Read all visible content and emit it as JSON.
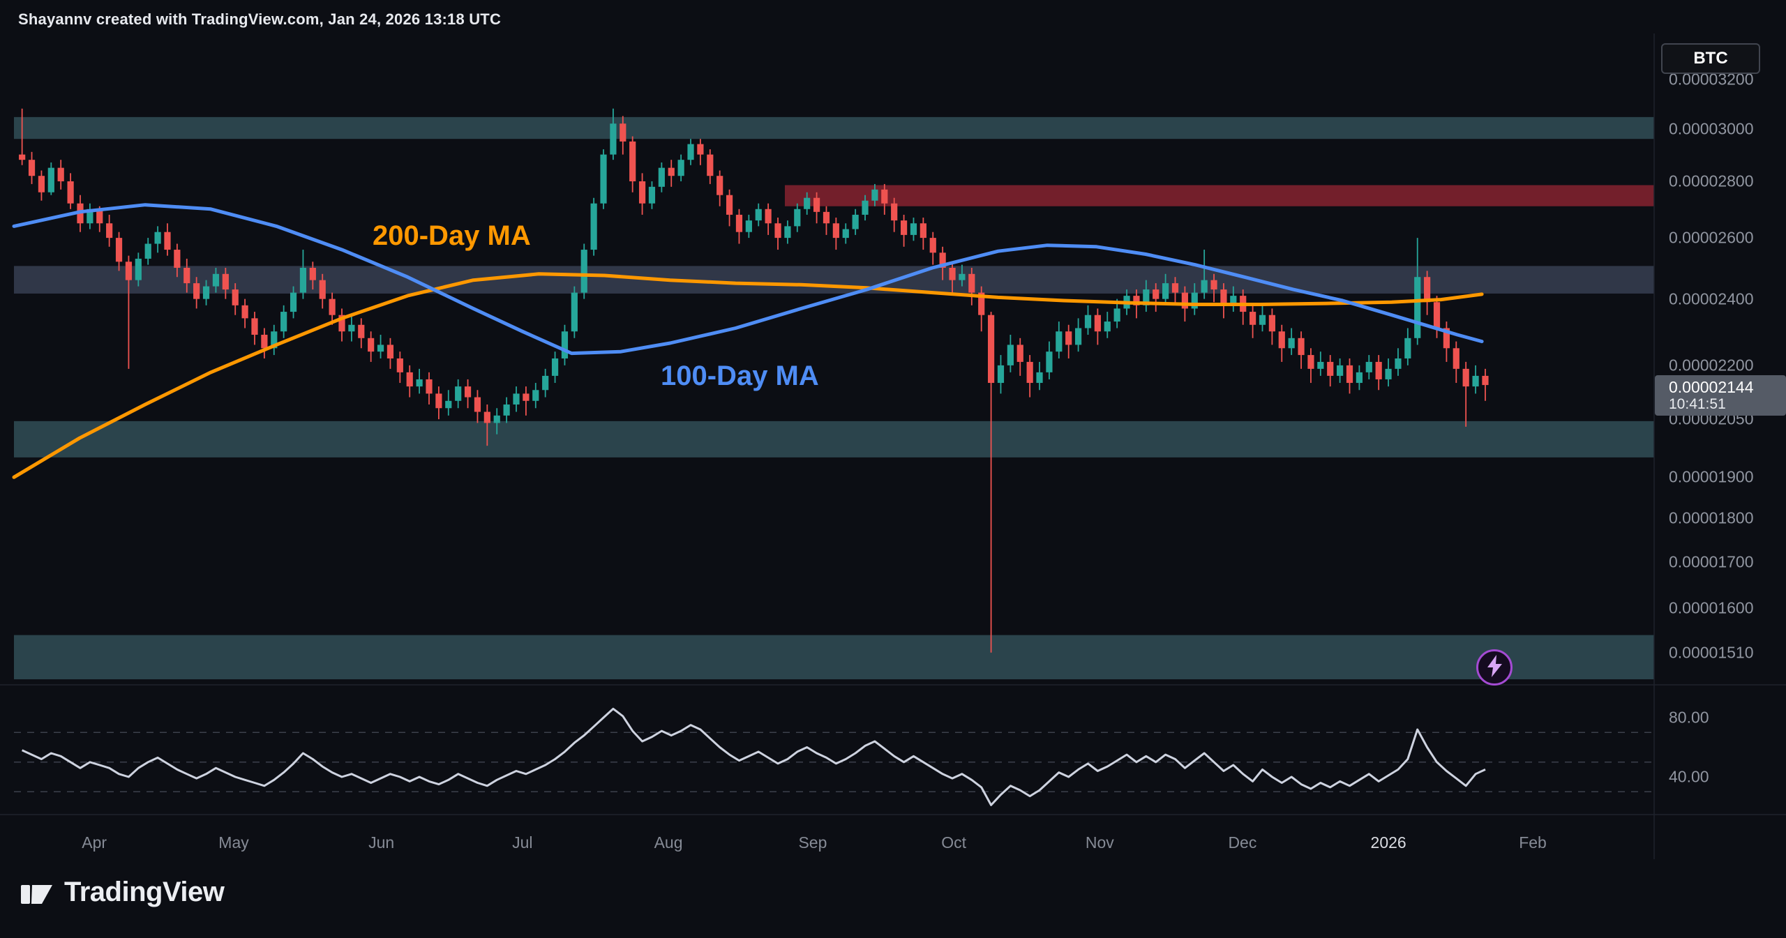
{
  "attribution": "Shayannv created with TradingView.com, Jan 24, 2026 13:18 UTC",
  "symbol_button": "BTC",
  "footer": {
    "brand": "TradingView"
  },
  "overlays": {
    "ma200_label": "200-Day MA",
    "ma100_label": "100-Day MA"
  },
  "price_scale": {
    "labels": [
      {
        "text": "0.00003200",
        "price": 3200
      },
      {
        "text": "0.00003000",
        "price": 3000
      },
      {
        "text": "0.00002800",
        "price": 2800
      },
      {
        "text": "0.00002600",
        "price": 2600
      },
      {
        "text": "0.00002400",
        "price": 2400
      },
      {
        "text": "0.00002200",
        "price": 2200
      },
      {
        "text": "0.00002050",
        "price": 2050
      },
      {
        "text": "0.00001900",
        "price": 1900
      },
      {
        "text": "0.00001800",
        "price": 1800
      },
      {
        "text": "0.00001700",
        "price": 1700
      },
      {
        "text": "0.00001600",
        "price": 1600
      },
      {
        "text": "0.00001510",
        "price": 1510
      }
    ],
    "last": {
      "price_text": "0.00002144",
      "countdown": "10:41:51"
    }
  },
  "time_axis": {
    "labels": [
      {
        "text": "Apr",
        "x_pct": 4.9,
        "bright": false
      },
      {
        "text": "May",
        "x_pct": 13.4,
        "bright": false
      },
      {
        "text": "Jun",
        "x_pct": 22.4,
        "bright": false
      },
      {
        "text": "Jul",
        "x_pct": 31.0,
        "bright": false
      },
      {
        "text": "Aug",
        "x_pct": 39.9,
        "bright": false
      },
      {
        "text": "Sep",
        "x_pct": 48.7,
        "bright": false
      },
      {
        "text": "Oct",
        "x_pct": 57.3,
        "bright": false
      },
      {
        "text": "Nov",
        "x_pct": 66.2,
        "bright": false
      },
      {
        "text": "Dec",
        "x_pct": 74.9,
        "bright": false
      },
      {
        "text": "2026",
        "x_pct": 83.8,
        "bright": true
      },
      {
        "text": "Feb",
        "x_pct": 92.6,
        "bright": false
      }
    ]
  },
  "rsi_axis": {
    "labels": [
      {
        "text": "80.00",
        "value": 80
      },
      {
        "text": "40.00",
        "value": 40
      }
    ]
  },
  "colors": {
    "background": "#0c0e14",
    "up": "#26a69a",
    "down": "#ef5350",
    "ma200": "#ff9800",
    "ma100": "#4f8df5",
    "rsi_line": "#ced3e0",
    "axis_text": "#9196a1",
    "axis_text_bright": "#dadce2",
    "badge_bg": "#555b66",
    "separator": "#1e222c",
    "guide": "#3c404b"
  },
  "chart_data": {
    "type": "candlestick",
    "scale": "logarithmic",
    "quote_currency": "BTC",
    "price_unit": "BTC x 1e-8 (2144 means 0.00002144)",
    "x_range": [
      "late Mar 2025",
      "late Jan 2026"
    ],
    "last_price": 2144,
    "candles": [
      [
        2900,
        3080,
        2860,
        2880
      ],
      [
        2880,
        2910,
        2790,
        2820
      ],
      [
        2820,
        2840,
        2730,
        2760
      ],
      [
        2760,
        2870,
        2750,
        2850
      ],
      [
        2850,
        2880,
        2770,
        2800
      ],
      [
        2800,
        2830,
        2700,
        2720
      ],
      [
        2720,
        2750,
        2620,
        2650
      ],
      [
        2650,
        2720,
        2630,
        2700
      ],
      [
        2700,
        2710,
        2620,
        2650
      ],
      [
        2650,
        2680,
        2570,
        2600
      ],
      [
        2600,
        2620,
        2490,
        2520
      ],
      [
        2520,
        2540,
        2190,
        2460
      ],
      [
        2460,
        2550,
        2440,
        2530
      ],
      [
        2530,
        2600,
        2510,
        2580
      ],
      [
        2580,
        2640,
        2550,
        2620
      ],
      [
        2620,
        2650,
        2540,
        2560
      ],
      [
        2560,
        2580,
        2470,
        2500
      ],
      [
        2500,
        2530,
        2420,
        2450
      ],
      [
        2450,
        2470,
        2370,
        2400
      ],
      [
        2400,
        2460,
        2380,
        2440
      ],
      [
        2440,
        2500,
        2420,
        2480
      ],
      [
        2480,
        2500,
        2400,
        2430
      ],
      [
        2430,
        2450,
        2350,
        2380
      ],
      [
        2380,
        2400,
        2310,
        2340
      ],
      [
        2340,
        2360,
        2260,
        2290
      ],
      [
        2290,
        2310,
        2220,
        2250
      ],
      [
        2250,
        2320,
        2230,
        2300
      ],
      [
        2300,
        2380,
        2280,
        2360
      ],
      [
        2360,
        2440,
        2340,
        2420
      ],
      [
        2420,
        2560,
        2400,
        2500
      ],
      [
        2500,
        2520,
        2430,
        2460
      ],
      [
        2460,
        2480,
        2370,
        2400
      ],
      [
        2400,
        2420,
        2320,
        2350
      ],
      [
        2350,
        2370,
        2270,
        2300
      ],
      [
        2300,
        2350,
        2270,
        2320
      ],
      [
        2320,
        2340,
        2250,
        2280
      ],
      [
        2280,
        2300,
        2210,
        2240
      ],
      [
        2240,
        2290,
        2220,
        2260
      ],
      [
        2260,
        2280,
        2190,
        2220
      ],
      [
        2220,
        2240,
        2150,
        2180
      ],
      [
        2180,
        2200,
        2110,
        2140
      ],
      [
        2140,
        2190,
        2120,
        2160
      ],
      [
        2160,
        2180,
        2090,
        2120
      ],
      [
        2120,
        2140,
        2050,
        2080
      ],
      [
        2080,
        2130,
        2060,
        2100
      ],
      [
        2100,
        2160,
        2080,
        2140
      ],
      [
        2140,
        2160,
        2080,
        2110
      ],
      [
        2110,
        2130,
        2040,
        2070
      ],
      [
        2070,
        2090,
        1980,
        2040
      ],
      [
        2040,
        2080,
        2010,
        2060
      ],
      [
        2060,
        2110,
        2040,
        2090
      ],
      [
        2090,
        2140,
        2070,
        2120
      ],
      [
        2120,
        2140,
        2060,
        2100
      ],
      [
        2100,
        2150,
        2080,
        2130
      ],
      [
        2130,
        2190,
        2110,
        2170
      ],
      [
        2170,
        2240,
        2150,
        2220
      ],
      [
        2220,
        2320,
        2200,
        2300
      ],
      [
        2300,
        2440,
        2280,
        2420
      ],
      [
        2420,
        2580,
        2400,
        2560
      ],
      [
        2560,
        2740,
        2540,
        2720
      ],
      [
        2720,
        2920,
        2700,
        2900
      ],
      [
        2900,
        3080,
        2880,
        3020
      ],
      [
        3020,
        3050,
        2900,
        2950
      ],
      [
        2950,
        2970,
        2760,
        2800
      ],
      [
        2800,
        2830,
        2680,
        2720
      ],
      [
        2720,
        2800,
        2700,
        2780
      ],
      [
        2780,
        2870,
        2760,
        2850
      ],
      [
        2850,
        2880,
        2780,
        2820
      ],
      [
        2820,
        2900,
        2800,
        2880
      ],
      [
        2880,
        2960,
        2860,
        2940
      ],
      [
        2940,
        2960,
        2860,
        2900
      ],
      [
        2900,
        2920,
        2790,
        2820
      ],
      [
        2820,
        2840,
        2710,
        2750
      ],
      [
        2750,
        2770,
        2640,
        2680
      ],
      [
        2680,
        2700,
        2580,
        2620
      ],
      [
        2620,
        2680,
        2600,
        2660
      ],
      [
        2660,
        2720,
        2640,
        2700
      ],
      [
        2700,
        2720,
        2610,
        2650
      ],
      [
        2650,
        2670,
        2560,
        2600
      ],
      [
        2600,
        2660,
        2580,
        2640
      ],
      [
        2640,
        2720,
        2620,
        2700
      ],
      [
        2700,
        2760,
        2680,
        2740
      ],
      [
        2740,
        2760,
        2650,
        2690
      ],
      [
        2690,
        2710,
        2610,
        2650
      ],
      [
        2650,
        2670,
        2560,
        2600
      ],
      [
        2600,
        2650,
        2580,
        2630
      ],
      [
        2630,
        2700,
        2610,
        2680
      ],
      [
        2680,
        2750,
        2660,
        2730
      ],
      [
        2730,
        2790,
        2710,
        2770
      ],
      [
        2770,
        2790,
        2680,
        2720
      ],
      [
        2720,
        2740,
        2620,
        2660
      ],
      [
        2660,
        2680,
        2570,
        2610
      ],
      [
        2610,
        2670,
        2590,
        2650
      ],
      [
        2650,
        2670,
        2560,
        2600
      ],
      [
        2600,
        2620,
        2510,
        2550
      ],
      [
        2550,
        2570,
        2460,
        2500
      ],
      [
        2500,
        2520,
        2420,
        2460
      ],
      [
        2460,
        2510,
        2440,
        2480
      ],
      [
        2480,
        2500,
        2380,
        2420
      ],
      [
        2420,
        2440,
        2300,
        2350
      ],
      [
        2350,
        2360,
        1510,
        2150
      ],
      [
        2150,
        2230,
        2120,
        2200
      ],
      [
        2200,
        2290,
        2180,
        2260
      ],
      [
        2260,
        2280,
        2170,
        2210
      ],
      [
        2210,
        2230,
        2110,
        2150
      ],
      [
        2150,
        2210,
        2130,
        2180
      ],
      [
        2180,
        2270,
        2160,
        2240
      ],
      [
        2240,
        2330,
        2220,
        2300
      ],
      [
        2300,
        2320,
        2220,
        2260
      ],
      [
        2260,
        2340,
        2240,
        2310
      ],
      [
        2310,
        2380,
        2290,
        2350
      ],
      [
        2350,
        2370,
        2260,
        2300
      ],
      [
        2300,
        2360,
        2280,
        2330
      ],
      [
        2330,
        2400,
        2310,
        2370
      ],
      [
        2370,
        2430,
        2350,
        2410
      ],
      [
        2410,
        2430,
        2340,
        2380
      ],
      [
        2380,
        2460,
        2360,
        2430
      ],
      [
        2430,
        2450,
        2360,
        2400
      ],
      [
        2400,
        2480,
        2380,
        2450
      ],
      [
        2450,
        2470,
        2380,
        2420
      ],
      [
        2420,
        2440,
        2330,
        2370
      ],
      [
        2370,
        2450,
        2350,
        2420
      ],
      [
        2420,
        2560,
        2400,
        2460
      ],
      [
        2460,
        2480,
        2390,
        2430
      ],
      [
        2430,
        2450,
        2340,
        2380
      ],
      [
        2380,
        2440,
        2360,
        2410
      ],
      [
        2410,
        2430,
        2320,
        2360
      ],
      [
        2360,
        2380,
        2280,
        2320
      ],
      [
        2320,
        2380,
        2300,
        2350
      ],
      [
        2350,
        2370,
        2260,
        2300
      ],
      [
        2300,
        2320,
        2210,
        2250
      ],
      [
        2250,
        2310,
        2230,
        2280
      ],
      [
        2280,
        2300,
        2190,
        2230
      ],
      [
        2230,
        2250,
        2150,
        2190
      ],
      [
        2190,
        2240,
        2170,
        2210
      ],
      [
        2210,
        2230,
        2140,
        2170
      ],
      [
        2170,
        2220,
        2150,
        2200
      ],
      [
        2200,
        2220,
        2120,
        2150
      ],
      [
        2150,
        2200,
        2130,
        2180
      ],
      [
        2180,
        2230,
        2160,
        2210
      ],
      [
        2210,
        2230,
        2130,
        2160
      ],
      [
        2160,
        2220,
        2140,
        2190
      ],
      [
        2190,
        2250,
        2170,
        2220
      ],
      [
        2220,
        2310,
        2200,
        2280
      ],
      [
        2280,
        2600,
        2260,
        2470
      ],
      [
        2470,
        2490,
        2350,
        2390
      ],
      [
        2390,
        2410,
        2280,
        2310
      ],
      [
        2310,
        2330,
        2210,
        2250
      ],
      [
        2250,
        2270,
        2150,
        2190
      ],
      [
        2190,
        2210,
        2030,
        2140
      ],
      [
        2140,
        2200,
        2120,
        2170
      ],
      [
        2170,
        2190,
        2100,
        2144
      ]
    ],
    "ma200": {
      "name": "200-Day MA",
      "points": [
        [
          0,
          1900
        ],
        [
          4,
          2000
        ],
        [
          8,
          2090
        ],
        [
          12,
          2180
        ],
        [
          16,
          2260
        ],
        [
          20,
          2340
        ],
        [
          24,
          2410
        ],
        [
          28,
          2460
        ],
        [
          32,
          2480
        ],
        [
          36,
          2475
        ],
        [
          40,
          2460
        ],
        [
          44,
          2450
        ],
        [
          48,
          2445
        ],
        [
          52,
          2435
        ],
        [
          56,
          2420
        ],
        [
          60,
          2405
        ],
        [
          64,
          2395
        ],
        [
          68,
          2388
        ],
        [
          72,
          2383
        ],
        [
          76,
          2383
        ],
        [
          80,
          2386
        ],
        [
          84,
          2390
        ],
        [
          87,
          2398
        ],
        [
          89.5,
          2415
        ]
      ]
    },
    "ma100": {
      "name": "100-Day MA",
      "points": [
        [
          0,
          2640
        ],
        [
          4,
          2690
        ],
        [
          8,
          2715
        ],
        [
          12,
          2700
        ],
        [
          16,
          2640
        ],
        [
          20,
          2560
        ],
        [
          24,
          2470
        ],
        [
          28,
          2370
        ],
        [
          31,
          2300
        ],
        [
          34,
          2235
        ],
        [
          37,
          2240
        ],
        [
          40,
          2265
        ],
        [
          44,
          2310
        ],
        [
          48,
          2370
        ],
        [
          52,
          2430
        ],
        [
          56,
          2500
        ],
        [
          60,
          2555
        ],
        [
          63,
          2575
        ],
        [
          66,
          2570
        ],
        [
          69,
          2545
        ],
        [
          72,
          2510
        ],
        [
          75,
          2470
        ],
        [
          78,
          2430
        ],
        [
          81,
          2395
        ],
        [
          84,
          2350
        ],
        [
          86,
          2320
        ],
        [
          88,
          2290
        ],
        [
          89.5,
          2270
        ]
      ]
    },
    "zones": [
      {
        "name": "supply-3000",
        "from": 2960,
        "to": 3046,
        "start_pct": 0,
        "color": "rgba(74,122,132,0.50)"
      },
      {
        "name": "resistance-2750",
        "from": 2710,
        "to": 2786,
        "start_pct": 47,
        "color": "rgba(200,45,62,0.55)"
      },
      {
        "name": "pivot-2450",
        "from": 2417,
        "to": 2506,
        "start_pct": 0,
        "color": "rgba(120,140,180,0.33)"
      },
      {
        "name": "support-2000",
        "from": 1950,
        "to": 2045,
        "start_pct": 0,
        "color": "rgba(74,122,132,0.50)"
      },
      {
        "name": "support-1510",
        "from": 1458,
        "to": 1545,
        "start_pct": 0,
        "color": "rgba(74,122,132,0.50)"
      }
    ],
    "rsi": {
      "name": "RSI",
      "guides": [
        70,
        50,
        30
      ],
      "axis_labels": [
        80,
        40
      ],
      "values": [
        58,
        55,
        52,
        56,
        54,
        50,
        46,
        50,
        48,
        46,
        42,
        40,
        46,
        50,
        53,
        49,
        45,
        42,
        39,
        42,
        46,
        43,
        40,
        38,
        36,
        34,
        38,
        43,
        49,
        56,
        52,
        47,
        43,
        40,
        42,
        39,
        36,
        39,
        42,
        40,
        37,
        40,
        37,
        35,
        38,
        42,
        39,
        36,
        34,
        38,
        41,
        44,
        42,
        45,
        48,
        52,
        57,
        63,
        68,
        74,
        80,
        86,
        81,
        71,
        64,
        67,
        71,
        68,
        71,
        75,
        72,
        66,
        60,
        55,
        51,
        54,
        57,
        53,
        49,
        52,
        57,
        60,
        56,
        53,
        49,
        52,
        56,
        61,
        64,
        59,
        54,
        50,
        54,
        50,
        46,
        42,
        39,
        42,
        38,
        33,
        21,
        28,
        34,
        31,
        27,
        31,
        37,
        43,
        40,
        45,
        49,
        44,
        47,
        51,
        55,
        50,
        54,
        50,
        55,
        52,
        46,
        51,
        56,
        50,
        44,
        48,
        42,
        37,
        45,
        40,
        36,
        40,
        35,
        32,
        36,
        33,
        37,
        34,
        38,
        42,
        37,
        41,
        45,
        52,
        72,
        60,
        50,
        44,
        39,
        34,
        42,
        45
      ]
    }
  }
}
